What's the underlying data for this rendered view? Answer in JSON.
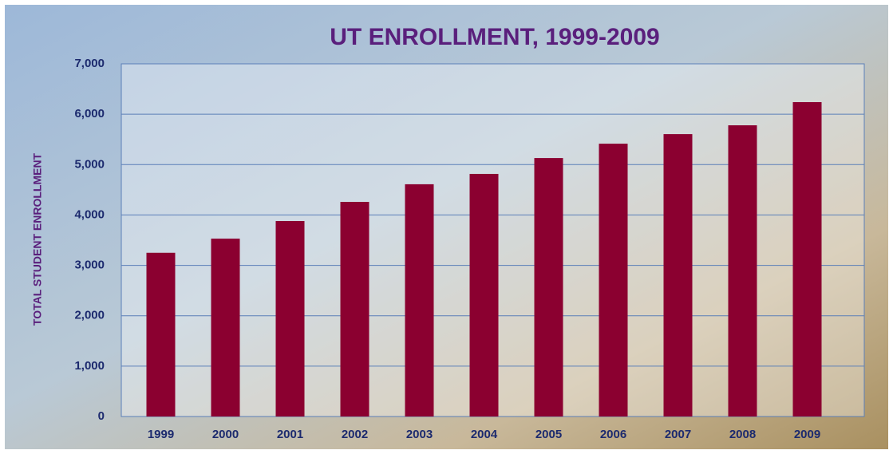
{
  "chart_data": {
    "type": "bar",
    "title": "UT ENROLLMENT, 1999-2009",
    "y_label": "TOTAL STUDENT ENROLLMENT",
    "categories": [
      "1999",
      "2000",
      "2001",
      "2002",
      "2003",
      "2004",
      "2005",
      "2006",
      "2007",
      "2008",
      "2009"
    ],
    "values": [
      3250,
      3530,
      3880,
      4260,
      4610,
      4815,
      5130,
      5415,
      5605,
      5780,
      6240
    ],
    "color": "#8b0030",
    "ylim": [
      0,
      7000
    ],
    "yticks": [
      0,
      {
        "value": 1000,
        "label": "1,000"
      },
      {
        "value": 2000,
        "label": "2,000"
      },
      {
        "value": 3000,
        "label": "3,000"
      },
      {
        "value": 4000,
        "label": "4,000"
      },
      {
        "value": 5000,
        "label": "5,000"
      },
      {
        "value": 6000,
        "label": "6,000"
      },
      {
        "value": 7000,
        "label": "7,000"
      }
    ],
    "grid": true
  }
}
